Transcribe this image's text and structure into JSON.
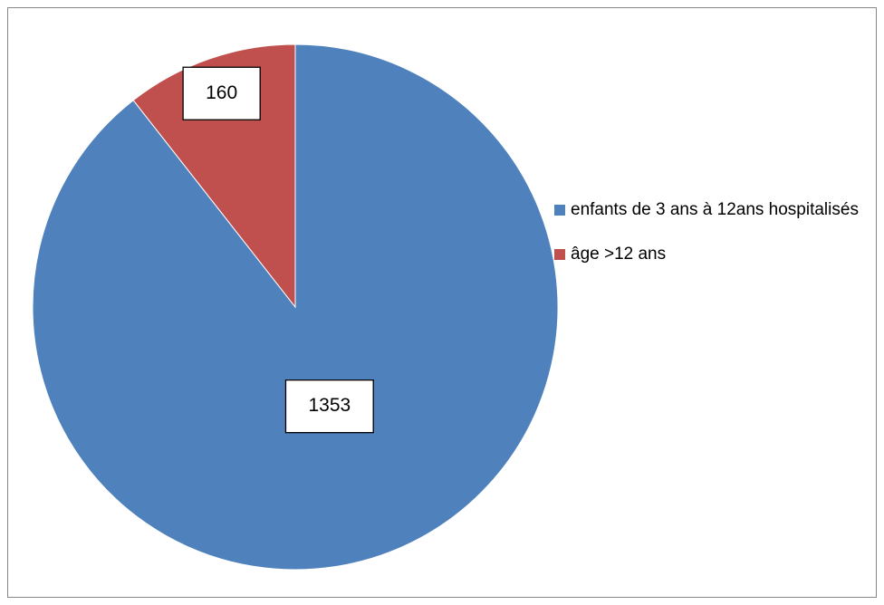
{
  "chart_data": {
    "type": "pie",
    "categories": [
      "enfants de 3 ans à 12ans hospitalisés",
      "âge >12 ans"
    ],
    "values": [
      1353,
      160
    ],
    "colors": [
      "#4f81bd",
      "#c0504d"
    ],
    "legend": "right"
  }
}
